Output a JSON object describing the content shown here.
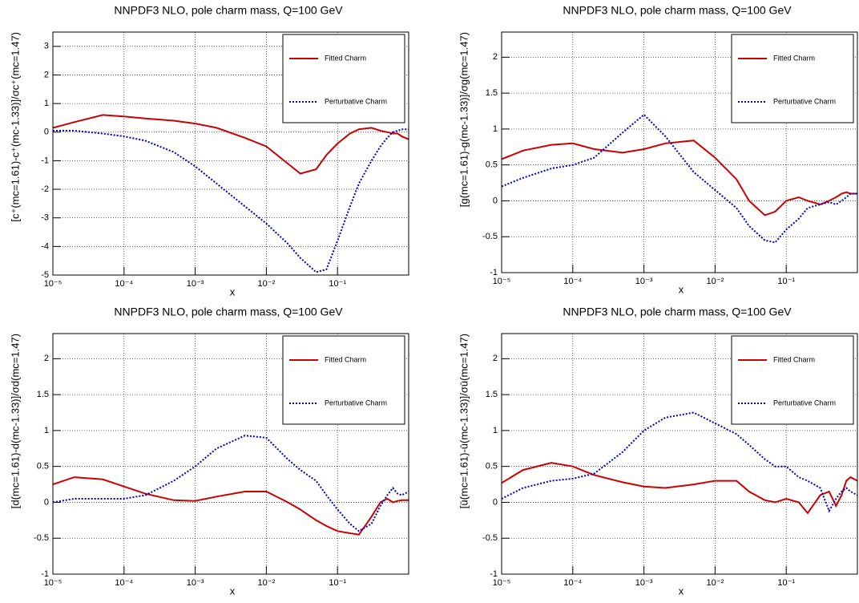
{
  "chart_data": [
    {
      "type": "line",
      "title": "NNPDF3 NLO, pole charm mass, Q=100 GeV",
      "x_label": "x",
      "y_label": "[c⁺(mc=1.61)-c⁺(mc-1.33)]/σc⁺(mc=1.47)",
      "x": [
        1e-05,
        2e-05,
        5e-05,
        0.0001,
        0.0002,
        0.0005,
        0.001,
        0.002,
        0.005,
        0.01,
        0.02,
        0.03,
        0.05,
        0.07,
        0.1,
        0.15,
        0.2,
        0.3,
        0.4,
        0.5,
        0.6,
        0.7,
        0.8,
        1
      ],
      "series": [
        {
          "name": "Fitted Charm",
          "color": "#cc0000",
          "linestyle": "solid",
          "values": [
            0.15,
            0.35,
            0.6,
            0.55,
            0.48,
            0.4,
            0.3,
            0.15,
            -0.2,
            -0.5,
            -1.1,
            -1.45,
            -1.3,
            -0.8,
            -0.4,
            -0.05,
            0.1,
            0.15,
            0.05,
            0,
            -0.05,
            -0.05,
            -0.15,
            -0.25
          ]
        },
        {
          "name": "Perturbative Charm",
          "color": "#0000cc",
          "linestyle": "dotted",
          "values": [
            0.05,
            0.05,
            -0.05,
            -0.15,
            -0.3,
            -0.7,
            -1.2,
            -1.8,
            -2.6,
            -3.2,
            -3.9,
            -4.4,
            -4.9,
            -4.8,
            -3.8,
            -2.6,
            -1.8,
            -1.0,
            -0.5,
            -0.2,
            0,
            0.05,
            0.1,
            0.1
          ]
        }
      ],
      "xlim": [
        1e-05,
        1
      ],
      "ylim": [
        -5,
        3.5
      ],
      "log_x": true,
      "grid": true,
      "legend": "upper right",
      "xticks": [
        {
          "value": 1e-05,
          "label": "10⁻⁵"
        },
        {
          "value": 0.0001,
          "label": "10⁻⁴"
        },
        {
          "value": 0.001,
          "label": "10⁻³"
        },
        {
          "value": 0.01,
          "label": "10⁻²"
        },
        {
          "value": 0.1,
          "label": "10⁻¹"
        }
      ],
      "yticks": [
        -5,
        -4,
        -3,
        -2,
        -1,
        0,
        1,
        2,
        3
      ]
    },
    {
      "type": "line",
      "title": "NNPDF3 NLO, pole charm mass, Q=100 GeV",
      "x_label": "x",
      "y_label": "[g(mc=1.61)-g(mc-1.33)]/σg(mc=1.47)",
      "x": [
        1e-05,
        2e-05,
        5e-05,
        0.0001,
        0.0002,
        0.0005,
        0.001,
        0.002,
        0.005,
        0.01,
        0.02,
        0.03,
        0.05,
        0.07,
        0.1,
        0.15,
        0.2,
        0.3,
        0.4,
        0.5,
        0.6,
        0.7,
        0.8,
        1
      ],
      "series": [
        {
          "name": "Fitted Charm",
          "color": "#cc0000",
          "linestyle": "solid",
          "values": [
            0.58,
            0.7,
            0.78,
            0.8,
            0.72,
            0.67,
            0.72,
            0.8,
            0.84,
            0.6,
            0.3,
            0.0,
            -0.2,
            -0.15,
            0.0,
            0.05,
            0.0,
            -0.05,
            0.0,
            0.05,
            0.1,
            0.12,
            0.1,
            0.1
          ]
        },
        {
          "name": "Perturbative Charm",
          "color": "#0000cc",
          "linestyle": "dotted",
          "values": [
            0.2,
            0.32,
            0.45,
            0.5,
            0.6,
            0.95,
            1.2,
            0.9,
            0.4,
            0.15,
            -0.1,
            -0.35,
            -0.55,
            -0.58,
            -0.4,
            -0.25,
            -0.1,
            -0.05,
            -0.02,
            -0.05,
            0.0,
            0.05,
            0.1,
            0.1
          ]
        }
      ],
      "xlim": [
        1e-05,
        1
      ],
      "ylim": [
        -1,
        2.35
      ],
      "log_x": true,
      "grid": true,
      "legend": "upper right",
      "xticks": [
        {
          "value": 1e-05,
          "label": "10⁻⁵"
        },
        {
          "value": 0.0001,
          "label": "10⁻⁴"
        },
        {
          "value": 0.001,
          "label": "10⁻³"
        },
        {
          "value": 0.01,
          "label": "10⁻²"
        },
        {
          "value": 0.1,
          "label": "10⁻¹"
        }
      ],
      "yticks": [
        -1,
        -0.5,
        0,
        0.5,
        1,
        1.5,
        2
      ]
    },
    {
      "type": "line",
      "title": "NNPDF3 NLO, pole charm mass, Q=100 GeV",
      "x_label": "x",
      "y_label": "[d(mc=1.61)-d(mc-1.33)]/σd(mc=1.47)",
      "x": [
        1e-05,
        2e-05,
        5e-05,
        0.0001,
        0.0002,
        0.0005,
        0.001,
        0.002,
        0.005,
        0.01,
        0.02,
        0.03,
        0.05,
        0.07,
        0.1,
        0.15,
        0.2,
        0.3,
        0.4,
        0.5,
        0.6,
        0.7,
        0.8,
        1
      ],
      "series": [
        {
          "name": "Fitted Charm",
          "color": "#cc0000",
          "linestyle": "solid",
          "values": [
            0.25,
            0.35,
            0.32,
            0.22,
            0.12,
            0.03,
            0.02,
            0.08,
            0.15,
            0.15,
            0.0,
            -0.1,
            -0.25,
            -0.33,
            -0.4,
            -0.43,
            -0.45,
            -0.2,
            0.0,
            0.05,
            0.0,
            0.02,
            0.03,
            0.03
          ]
        },
        {
          "name": "Perturbative Charm",
          "color": "#0000cc",
          "linestyle": "dotted",
          "values": [
            0.0,
            0.05,
            0.05,
            0.05,
            0.1,
            0.3,
            0.5,
            0.75,
            0.93,
            0.9,
            0.6,
            0.45,
            0.3,
            0.1,
            -0.1,
            -0.3,
            -0.4,
            -0.3,
            -0.05,
            0.1,
            0.2,
            0.12,
            0.1,
            0.15
          ]
        }
      ],
      "xlim": [
        1e-05,
        1
      ],
      "ylim": [
        -1,
        2.35
      ],
      "log_x": true,
      "grid": true,
      "legend": "upper right",
      "xticks": [
        {
          "value": 1e-05,
          "label": "10⁻⁵"
        },
        {
          "value": 0.0001,
          "label": "10⁻⁴"
        },
        {
          "value": 0.001,
          "label": "10⁻³"
        },
        {
          "value": 0.01,
          "label": "10⁻²"
        },
        {
          "value": 0.1,
          "label": "10⁻¹"
        }
      ],
      "yticks": [
        -1,
        -0.5,
        0,
        0.5,
        1,
        1.5,
        2
      ]
    },
    {
      "type": "line",
      "title": "NNPDF3 NLO, pole charm mass, Q=100 GeV",
      "x_label": "x",
      "y_label": "[ū(mc=1.61)-ū(mc-1.33)]/σū(mc=1.47)",
      "x": [
        1e-05,
        2e-05,
        5e-05,
        0.0001,
        0.0002,
        0.0005,
        0.001,
        0.002,
        0.005,
        0.01,
        0.02,
        0.03,
        0.05,
        0.07,
        0.1,
        0.15,
        0.2,
        0.3,
        0.4,
        0.5,
        0.6,
        0.7,
        0.8,
        1
      ],
      "series": [
        {
          "name": "Fitted Charm",
          "color": "#cc0000",
          "linestyle": "solid",
          "values": [
            0.27,
            0.45,
            0.55,
            0.5,
            0.38,
            0.28,
            0.22,
            0.2,
            0.25,
            0.3,
            0.3,
            0.15,
            0.03,
            0.0,
            0.05,
            0.0,
            -0.15,
            0.1,
            0.15,
            -0.05,
            0.1,
            0.3,
            0.35,
            0.3
          ]
        },
        {
          "name": "Perturbative Charm",
          "color": "#0000cc",
          "linestyle": "dotted",
          "values": [
            0.05,
            0.2,
            0.3,
            0.33,
            0.4,
            0.7,
            1.0,
            1.18,
            1.25,
            1.1,
            0.95,
            0.8,
            0.6,
            0.5,
            0.5,
            0.35,
            0.3,
            0.2,
            -0.12,
            0.05,
            0.15,
            0.2,
            0.15,
            0.1
          ]
        }
      ],
      "xlim": [
        1e-05,
        1
      ],
      "ylim": [
        -1,
        2.35
      ],
      "log_x": true,
      "grid": true,
      "legend": "upper right",
      "xticks": [
        {
          "value": 1e-05,
          "label": "10⁻⁵"
        },
        {
          "value": 0.0001,
          "label": "10⁻⁴"
        },
        {
          "value": 0.001,
          "label": "10⁻³"
        },
        {
          "value": 0.01,
          "label": "10⁻²"
        },
        {
          "value": 0.1,
          "label": "10⁻¹"
        }
      ],
      "yticks": [
        -1,
        -0.5,
        0,
        0.5,
        1,
        1.5,
        2
      ]
    }
  ]
}
